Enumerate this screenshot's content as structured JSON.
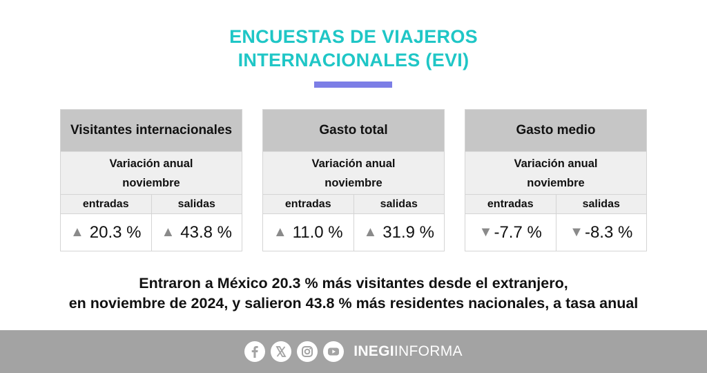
{
  "title": {
    "line1": "ENCUESTAS DE VIAJEROS",
    "line2": "INTERNACIONALES (EVI)"
  },
  "cards": [
    {
      "heading": "Visitantes internacionales",
      "sub1": "Variación anual",
      "sub2": "noviembre",
      "label_left": "entradas",
      "label_right": "salidas",
      "left": {
        "arrow": "▲",
        "value": "20.3 %",
        "direction": "up"
      },
      "right": {
        "arrow": "▲",
        "value": "43.8 %",
        "direction": "up"
      }
    },
    {
      "heading": "Gasto total",
      "sub1": "Variación anual",
      "sub2": "noviembre",
      "label_left": "entradas",
      "label_right": "salidas",
      "left": {
        "arrow": "▲",
        "value": "11.0 %",
        "direction": "up"
      },
      "right": {
        "arrow": "▲",
        "value": "31.9 %",
        "direction": "up"
      }
    },
    {
      "heading": "Gasto medio",
      "sub1": "Variación anual",
      "sub2": "noviembre",
      "label_left": "entradas",
      "label_right": "salidas",
      "left": {
        "arrow": "▼",
        "value": "-7.7 %",
        "direction": "down"
      },
      "right": {
        "arrow": "▼",
        "value": "-8.3 %",
        "direction": "down"
      }
    }
  ],
  "statement": {
    "line1": "Entraron a México 20.3 % más visitantes desde el extranjero,",
    "line2": "en noviembre de 2024, y salieron 43.8 % más residentes nacionales, a tasa anual"
  },
  "footer": {
    "icons": [
      "facebook-icon",
      "x-icon",
      "instagram-icon",
      "youtube-icon"
    ],
    "brand_bold": "INEGI",
    "brand_light": "INFORMA"
  },
  "colors": {
    "title": "#1fc6c6",
    "title_bar": "#7c7ee6",
    "card_header": "#c6c6c6",
    "card_sub": "#efefef",
    "arrow": "#8a8a8a",
    "footer": "#a3a3a3"
  }
}
